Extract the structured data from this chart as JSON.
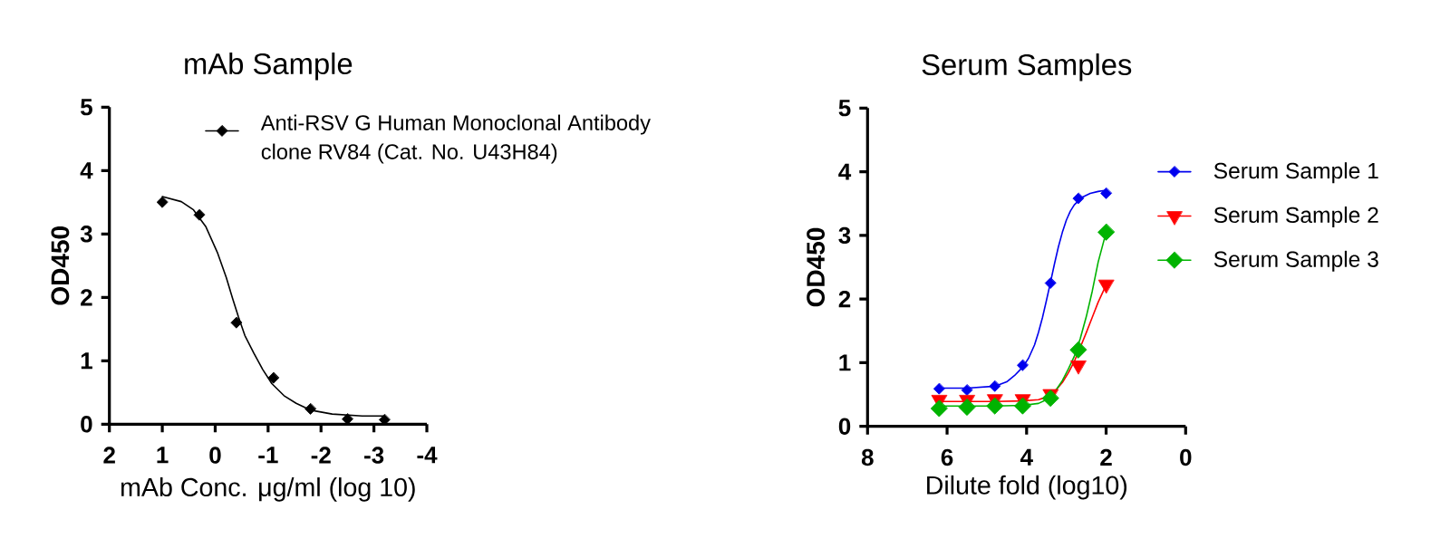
{
  "chart_data": [
    {
      "type": "scatter",
      "title": "mAb Sample",
      "xlabel": "mAb Conc. μg/ml (log 10)",
      "ylabel": "OD450",
      "xlim": [
        2,
        -4
      ],
      "xticks": [
        2,
        1,
        0,
        -1,
        -2,
        -3,
        -4
      ],
      "ylim": [
        0,
        5
      ],
      "yticks": [
        0,
        1,
        2,
        3,
        4,
        5
      ],
      "legend": "top",
      "series": [
        {
          "type": "line",
          "color": "#000000",
          "marker": "none",
          "x": [
            1.0,
            0.64,
            0.41,
            0.18,
            -0.04,
            -0.21,
            -0.33,
            -0.44,
            -0.56,
            -0.73,
            -0.9,
            -1.07,
            -1.3,
            -1.53,
            -1.81,
            -2.21,
            -2.78,
            -3.2
          ],
          "values": [
            3.59,
            3.51,
            3.38,
            3.12,
            2.71,
            2.31,
            1.98,
            1.69,
            1.4,
            1.12,
            0.86,
            0.64,
            0.45,
            0.33,
            0.22,
            0.16,
            0.13,
            0.13
          ]
        },
        {
          "name": "Anti-RSV G Human Monoclonal Antibody clone RV84 (Cat. No. U43H84)",
          "color": "#000000",
          "marker": "diamond",
          "x": [
            1.0,
            0.3,
            -0.4,
            -1.1,
            -1.8,
            -2.5,
            -3.2
          ],
          "values": [
            3.5,
            3.3,
            1.6,
            0.73,
            0.24,
            0.08,
            0.07
          ]
        }
      ]
    },
    {
      "type": "scatter",
      "title": "Serum Samples",
      "xlabel": "Dilute fold (log10)",
      "ylabel": "OD450",
      "xlim": [
        8,
        0
      ],
      "xticks": [
        8,
        6,
        4,
        2,
        0
      ],
      "ylim": [
        0,
        5
      ],
      "yticks": [
        0,
        1,
        2,
        3,
        4,
        5
      ],
      "legend": "right",
      "series": [
        {
          "type": "line",
          "color": "#0000ee",
          "marker": "none",
          "x": [
            6.2,
            5.5,
            4.8,
            4.5,
            4.3,
            4.1,
            3.95,
            3.8,
            3.7,
            3.6,
            3.5,
            3.4,
            3.3,
            3.2,
            3.1,
            3.0,
            2.9,
            2.8,
            2.6,
            2.4,
            2.2,
            2.0
          ],
          "values": [
            0.6,
            0.6,
            0.63,
            0.7,
            0.8,
            0.93,
            1.07,
            1.28,
            1.48,
            1.71,
            1.98,
            2.26,
            2.55,
            2.82,
            3.05,
            3.24,
            3.38,
            3.48,
            3.6,
            3.66,
            3.69,
            3.71
          ]
        },
        {
          "type": "line",
          "color": "#ff0000",
          "marker": "none",
          "x": [
            6.2,
            5.5,
            4.8,
            4.1,
            3.7,
            3.5,
            3.4,
            3.25,
            3.1,
            2.95,
            2.8,
            2.65,
            2.5,
            2.35,
            2.2,
            2.0
          ],
          "values": [
            0.39,
            0.39,
            0.39,
            0.4,
            0.42,
            0.46,
            0.5,
            0.58,
            0.69,
            0.84,
            1.02,
            1.24,
            1.47,
            1.71,
            1.95,
            2.22
          ]
        },
        {
          "type": "line",
          "color": "#00b300",
          "marker": "none",
          "x": [
            6.2,
            5.5,
            4.8,
            4.1,
            3.7,
            3.5,
            3.4,
            3.25,
            3.1,
            2.95,
            2.8,
            2.65,
            2.5,
            2.35,
            2.2,
            2.0
          ],
          "values": [
            0.32,
            0.32,
            0.32,
            0.33,
            0.36,
            0.42,
            0.47,
            0.58,
            0.72,
            0.9,
            1.1,
            1.38,
            1.72,
            2.12,
            2.58,
            3.05
          ]
        },
        {
          "name": "Serum Sample 1",
          "color": "#0000ee",
          "marker": "diamond",
          "x": [
            6.2,
            5.5,
            4.8,
            4.1,
            3.4,
            2.7,
            2.0
          ],
          "values": [
            0.59,
            0.57,
            0.63,
            0.96,
            2.25,
            3.58,
            3.66
          ]
        },
        {
          "name": "Serum Sample 2",
          "color": "#ff0000",
          "marker": "triangle",
          "x": [
            6.2,
            5.5,
            4.8,
            4.1,
            3.4,
            2.7,
            2.0
          ],
          "values": [
            0.42,
            0.42,
            0.43,
            0.43,
            0.51,
            0.96,
            2.23
          ]
        },
        {
          "name": "Serum Sample 3",
          "color": "#00b300",
          "marker": "diamond",
          "x": [
            6.2,
            5.5,
            4.8,
            4.1,
            3.4,
            2.7,
            2.0
          ],
          "values": [
            0.28,
            0.3,
            0.32,
            0.32,
            0.44,
            1.2,
            3.05
          ]
        }
      ]
    }
  ]
}
